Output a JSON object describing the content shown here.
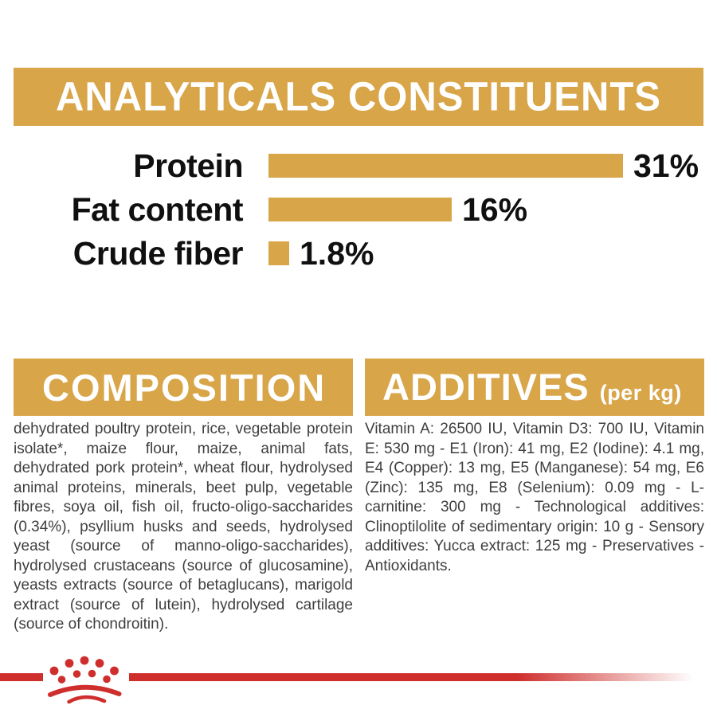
{
  "colors": {
    "gold": "#D8A549",
    "red": "#CE2F2D",
    "band_text": "#FFFFFF",
    "label_text": "#101010",
    "body_text": "#3E3E3E"
  },
  "analyticals": {
    "title": "ANALYTICALS CONSTITUENTS"
  },
  "chart_data": {
    "type": "bar",
    "orientation": "horizontal",
    "title": "ANALYTICALS CONSTITUENTS",
    "categories": [
      "Protein",
      "Fat content",
      "Crude fiber"
    ],
    "values": [
      31,
      16,
      1.8
    ],
    "value_labels": [
      "31%",
      "16%",
      "1.8%"
    ],
    "unit": "%",
    "xlim": [
      0,
      31
    ],
    "bar_color": "#D8A549",
    "grid": false,
    "legend": false,
    "value_label_position": "end-of-bar"
  },
  "composition": {
    "title": "COMPOSITION",
    "body": "dehydrated poultry protein, rice, vegetable protein isolate*, maize flour, maize, animal fats, dehydrated pork protein*, wheat flour, hydrolysed animal proteins, minerals, beet pulp, vegetable fibres, soya oil, fish oil, fructo-oligo-saccharides (0.34%), psyllium husks and seeds, hydrolysed yeast (source of manno-oligo-saccharides), hydrolysed crustaceans (source of glucosamine), yeasts extracts (source of betaglucans), marigold extract (source of lutein), hydrolysed cartilage (source of chondroitin)."
  },
  "additives": {
    "title": "ADDITIVES",
    "unit_label": "(per kg)",
    "body": "Vitamin A: 26500 IU, Vitamin D3: 700 IU, Vitamin E: 530 mg - E1 (Iron): 41 mg, E2 (Iodine): 4.1 mg, E4 (Copper): 13 mg, E5 (Manganese): 54 mg, E6 (Zinc): 135 mg, E8 (Selenium): 0.09 mg - L-carnitine: 300 mg - Technological additives: Clinoptilolite of sedimentary origin: 10 g - Sensory additives: Yucca extract: 125 mg - Preservatives - Antioxidants."
  },
  "footer": {
    "logo": "royal-canin-crown",
    "logo_color": "#CE2F2D"
  }
}
